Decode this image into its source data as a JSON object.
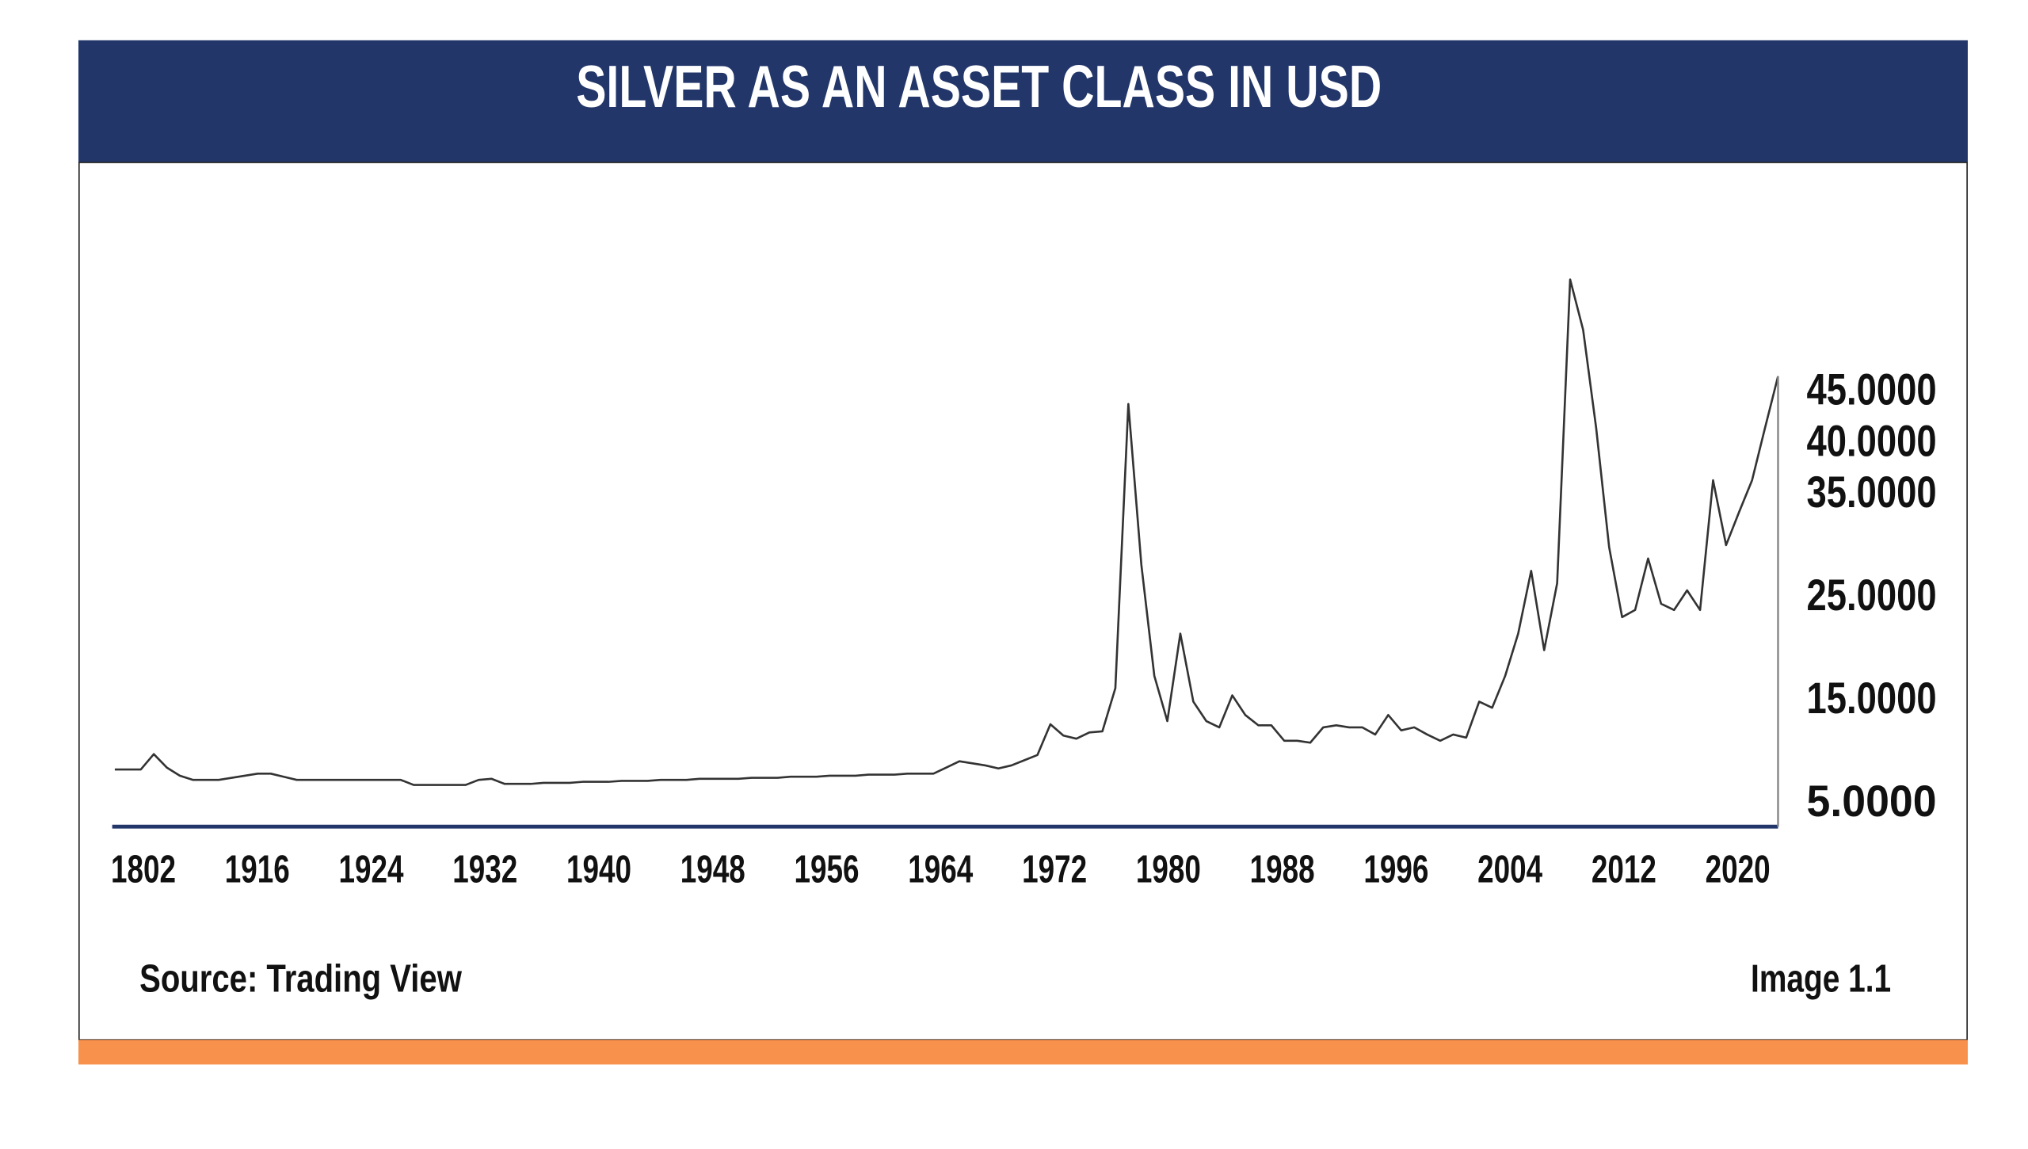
{
  "chart_data": {
    "type": "line",
    "title": "SILVER AS AN ASSET CLASS IN USD",
    "source": "Source: Trading View",
    "image_label": "Image 1.1",
    "color": "#333333",
    "x_labels": [
      "1802",
      "1916",
      "1924",
      "1932",
      "1940",
      "1948",
      "1956",
      "1964",
      "1972",
      "1980",
      "1988",
      "1996",
      "2004",
      "2012",
      "2020"
    ],
    "values": [
      8.4,
      8.4,
      8.4,
      9.9,
      8.6,
      7.8,
      7.4,
      7.4,
      7.4,
      7.6,
      7.8,
      8.0,
      8.0,
      7.7,
      7.4,
      7.4,
      7.4,
      7.4,
      7.4,
      7.4,
      7.4,
      7.4,
      7.4,
      6.9,
      6.9,
      6.9,
      6.9,
      6.9,
      7.4,
      7.5,
      7.0,
      7.0,
      7.0,
      7.1,
      7.1,
      7.1,
      7.2,
      7.2,
      7.2,
      7.3,
      7.3,
      7.3,
      7.4,
      7.4,
      7.4,
      7.5,
      7.5,
      7.5,
      7.5,
      7.6,
      7.6,
      7.6,
      7.7,
      7.7,
      7.7,
      7.8,
      7.8,
      7.8,
      7.9,
      7.9,
      7.9,
      8.0,
      8.0,
      8.0,
      8.6,
      9.2,
      9.0,
      8.8,
      8.5,
      8.8,
      9.3,
      9.8,
      12.8,
      11.7,
      11.4,
      12.0,
      12.1,
      16.3,
      43.9,
      28.3,
      17.5,
      13.1,
      21.6,
      15.0,
      13.1,
      12.5,
      15.6,
      13.7,
      12.7,
      12.7,
      11.2,
      11.2,
      11.0,
      12.5,
      12.7,
      12.5,
      12.5,
      11.8,
      13.7,
      12.2,
      12.5,
      11.8,
      11.2,
      11.8,
      11.5,
      15.0,
      14.4,
      17.5,
      21.6,
      27.7,
      20.0,
      26.5,
      56.0,
      51.1,
      41.6,
      30.0,
      23.2,
      23.9,
      28.9,
      24.5,
      23.9,
      25.8,
      23.9,
      36.5,
      30.2,
      33.4,
      36.5,
      41.6,
      46.6
    ],
    "ylim": [
      2.85,
      56
    ],
    "yticks": [
      {
        "value": 5,
        "label": "5.0000"
      },
      {
        "value": 15,
        "label": "15.0000"
      },
      {
        "value": 25,
        "label": "25.0000"
      },
      {
        "value": 35,
        "label": "35.0000"
      },
      {
        "value": 40,
        "label": "40.0000"
      },
      {
        "value": 45,
        "label": "45.0000"
      }
    ]
  }
}
